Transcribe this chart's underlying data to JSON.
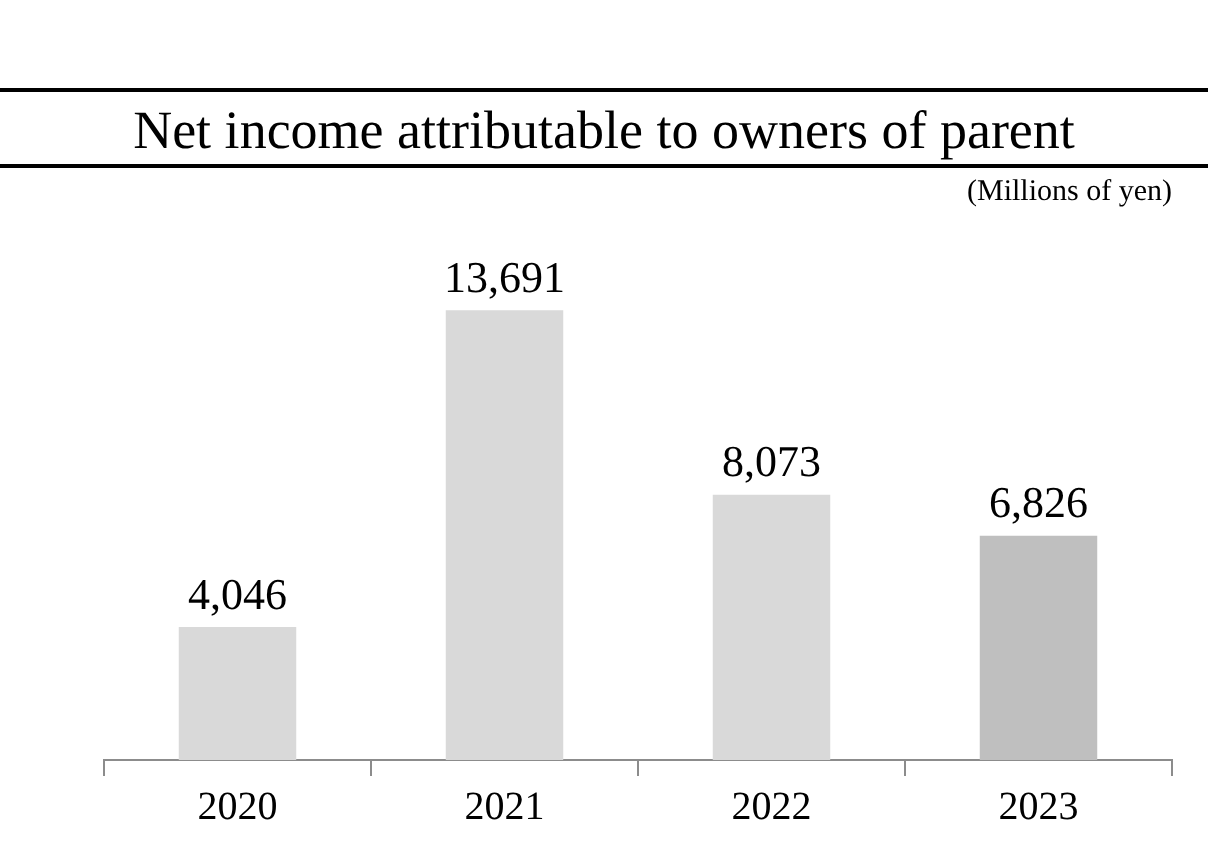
{
  "chart_data": {
    "type": "bar",
    "title": "Net income attributable to owners of parent",
    "subtitle": "(Millions of yen)",
    "categories": [
      "2020",
      "2021",
      "2022",
      "2023"
    ],
    "values": [
      4046,
      13691,
      8073,
      6826
    ],
    "colors": [
      "#d9d9d9",
      "#d9d9d9",
      "#d9d9d9",
      "#bfbfbf"
    ],
    "value_labels": [
      "4,046",
      "13,691",
      "8,073",
      "6,826"
    ],
    "grid": false,
    "legend": false
  }
}
